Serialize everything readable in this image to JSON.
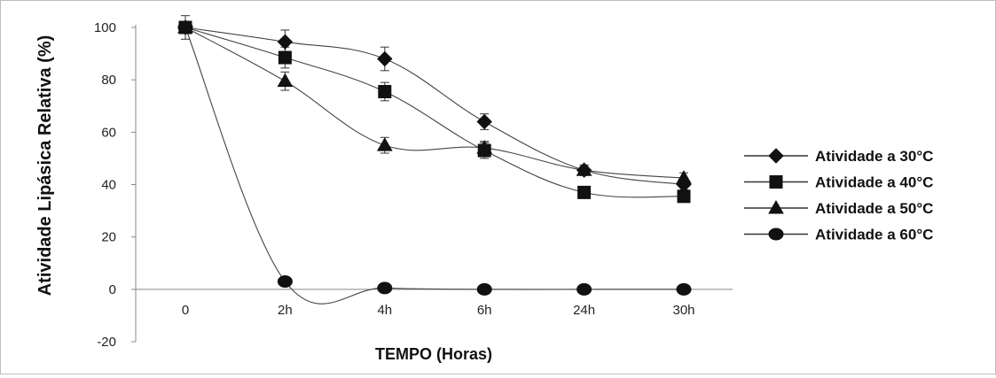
{
  "chart_data": {
    "type": "line",
    "title": "",
    "xlabel": "TEMPO (Horas)",
    "ylabel": "Atividade Lipásica Relativa (%)",
    "categories": [
      "0",
      "2h",
      "4h",
      "6h",
      "24h",
      "30h"
    ],
    "ylim": [
      -20,
      100
    ],
    "yticks": [
      -20,
      0,
      20,
      40,
      60,
      80,
      100
    ],
    "grid": false,
    "legend_position": "right",
    "series": [
      {
        "name": "Atividade a 30°C",
        "marker": "diamond",
        "values": [
          100,
          94.5,
          88,
          64,
          45.5,
          40
        ],
        "errors": [
          0,
          4.5,
          4.5,
          3,
          2,
          2
        ]
      },
      {
        "name": "Atividade a 40°C",
        "marker": "square",
        "values": [
          100,
          88.5,
          75.5,
          53,
          37,
          35.5
        ],
        "errors": [
          4.5,
          4,
          3.5,
          3,
          1.5,
          1.5
        ]
      },
      {
        "name": "Atividade a 50°C",
        "marker": "triangle",
        "values": [
          100,
          79.5,
          55,
          54,
          45.5,
          42.5
        ],
        "errors": [
          0,
          3.5,
          3,
          2.5,
          1.5,
          2
        ]
      },
      {
        "name": "Atividade a 60°C",
        "marker": "circle",
        "values": [
          100,
          3,
          0.5,
          0,
          0,
          0
        ],
        "errors": [
          0,
          0,
          0,
          0,
          0,
          0
        ]
      }
    ]
  }
}
